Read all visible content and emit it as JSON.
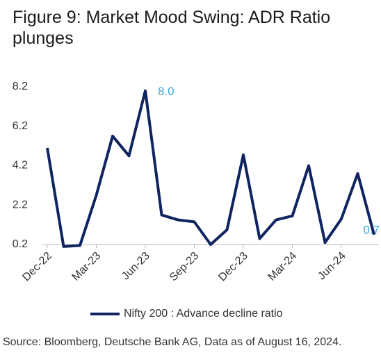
{
  "chart_data": {
    "type": "line",
    "title": "Figure 9: Market Mood Swing: ADR Ratio plunges",
    "source": "Source: Bloomberg, Deutsche Bank AG, Data as of August 16, 2024.",
    "categories": [
      "Dec-22",
      null,
      null,
      "Mar-23",
      null,
      null,
      "Jun-23",
      null,
      null,
      "Sep-23",
      null,
      null,
      "Dec-23",
      null,
      null,
      "Mar-24",
      null,
      null,
      "Jun-24",
      null,
      null
    ],
    "series": [
      {
        "name": "Nifty 200 : Advance decline ratio",
        "color": "#0f2460",
        "values": [
          5.1,
          0.1,
          0.15,
          2.7,
          5.7,
          4.7,
          8.0,
          1.7,
          1.45,
          1.35,
          0.2,
          0.95,
          4.75,
          0.5,
          1.45,
          1.65,
          4.2,
          0.3,
          1.5,
          3.8,
          0.7
        ],
        "value_labels": [
          null,
          null,
          null,
          null,
          null,
          null,
          "8.0",
          null,
          null,
          null,
          null,
          null,
          null,
          null,
          null,
          null,
          null,
          null,
          null,
          null,
          "0.7"
        ],
        "label_color": "#3aa8dc"
      }
    ],
    "ylim": [
      0.2,
      8.2
    ],
    "yticks": [
      0.2,
      2.2,
      4.2,
      6.2,
      8.2
    ],
    "grid": false,
    "legend": "bottom"
  }
}
